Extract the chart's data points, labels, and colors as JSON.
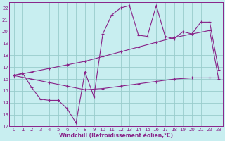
{
  "xlabel": "Windchill (Refroidissement éolien,°C)",
  "bg_color": "#c8eef0",
  "line_color": "#882288",
  "grid_color": "#99cccc",
  "xlim": [
    -0.5,
    23.5
  ],
  "ylim": [
    12,
    22.5
  ],
  "xticks": [
    0,
    1,
    2,
    3,
    4,
    5,
    6,
    7,
    8,
    9,
    10,
    11,
    12,
    13,
    14,
    15,
    16,
    17,
    18,
    19,
    20,
    21,
    22,
    23
  ],
  "yticks": [
    12,
    13,
    14,
    15,
    16,
    17,
    18,
    19,
    20,
    21,
    22
  ],
  "line1_x": [
    0,
    1,
    2,
    3,
    4,
    5,
    6,
    7,
    8,
    9,
    10,
    11,
    12,
    13,
    14,
    15,
    16,
    17,
    18,
    19,
    20,
    21,
    22,
    23
  ],
  "line1_y": [
    16.3,
    16.5,
    15.3,
    14.3,
    14.2,
    14.2,
    13.5,
    12.3,
    16.6,
    14.5,
    19.8,
    21.4,
    22.0,
    22.2,
    19.7,
    19.6,
    22.2,
    19.6,
    19.4,
    20.0,
    19.8,
    20.8,
    20.8,
    16.8
  ],
  "line2_x": [
    0,
    2,
    4,
    6,
    8,
    10,
    12,
    14,
    16,
    18,
    20,
    22,
    23
  ],
  "line2_y": [
    16.3,
    16.0,
    15.7,
    15.4,
    15.1,
    15.2,
    15.4,
    15.6,
    15.8,
    16.0,
    16.1,
    16.1,
    16.1
  ],
  "line3_x": [
    0,
    2,
    4,
    6,
    8,
    10,
    12,
    14,
    16,
    18,
    20,
    22,
    23
  ],
  "line3_y": [
    16.3,
    16.6,
    16.9,
    17.2,
    17.5,
    17.9,
    18.3,
    18.7,
    19.1,
    19.5,
    19.8,
    20.1,
    16.0
  ]
}
